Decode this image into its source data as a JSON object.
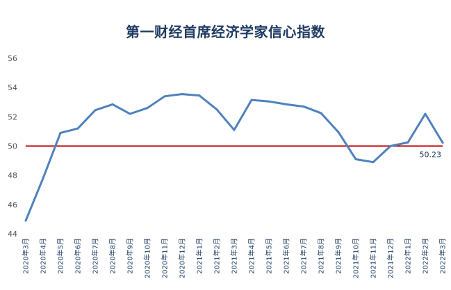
{
  "chart_data": {
    "type": "line",
    "title": "第一财经首席经济学家信心指数",
    "xlabel": "",
    "ylabel": "",
    "ylim": [
      44,
      56
    ],
    "yticks": [
      44,
      46,
      48,
      50,
      52,
      54,
      56
    ],
    "grid": false,
    "categories": [
      "2020年3月",
      "2020年4月",
      "2020年5月",
      "2020年6月",
      "2020年7月",
      "2020年8月",
      "2020年9月",
      "2020年10月",
      "2020年11月",
      "2020年12月",
      "2021年1月",
      "2021年2月",
      "2021年3月",
      "2021年4月",
      "2021年5月",
      "2021年6月",
      "2021年7月",
      "2021年8月",
      "2021年9月",
      "2021年10月",
      "2021年11月",
      "2021年12月",
      "2022年1月",
      "2022年2月",
      "2022年3月"
    ],
    "series": [
      {
        "name": "第一财经首席经济学家信心指数",
        "color": "#4f81bd",
        "values": [
          44.9,
          47.8,
          50.9,
          51.2,
          52.45,
          52.85,
          52.2,
          52.6,
          53.4,
          53.55,
          53.45,
          52.5,
          51.1,
          53.15,
          53.05,
          52.85,
          52.7,
          52.25,
          50.95,
          49.1,
          48.9,
          50.0,
          50.25,
          52.2,
          50.23
        ]
      }
    ],
    "reference_line": {
      "value": 50,
      "color": "#c00000"
    },
    "annotations": [
      {
        "text": "50.23",
        "category": "2022年3月"
      }
    ]
  }
}
